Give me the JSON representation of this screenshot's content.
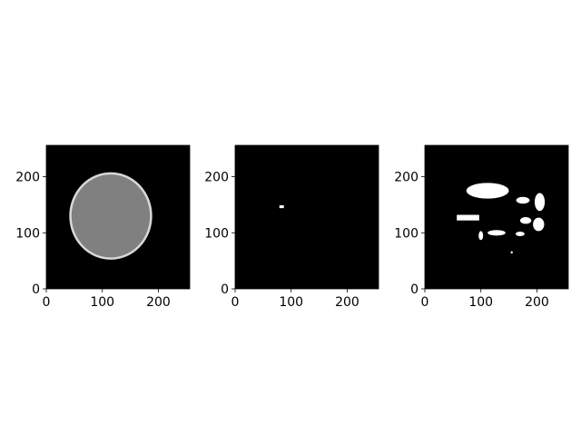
{
  "chart_data": [
    {
      "type": "heatmap",
      "content": "ct-slice-head",
      "colormap": "gray",
      "image_size": [
        256,
        256
      ],
      "xlim": [
        0,
        256
      ],
      "ylim": [
        0,
        256
      ],
      "xticks": [
        0,
        100,
        200
      ],
      "yticks": [
        0,
        100,
        200
      ],
      "xtick_labels": [
        "0",
        "100",
        "200"
      ],
      "ytick_labels": [
        "0",
        "100",
        "200"
      ],
      "regions": [
        {
          "label": "head",
          "shape": "ellipse",
          "center": [
            115,
            130
          ],
          "radius": [
            72,
            76
          ],
          "intensity": 0.5
        },
        {
          "label": "skull-rim",
          "shape": "ring",
          "center": [
            115,
            130
          ],
          "radius": [
            72,
            76
          ],
          "intensity": 0.85
        }
      ]
    },
    {
      "type": "heatmap",
      "content": "binary-mask",
      "colormap": "gray",
      "image_size": [
        256,
        256
      ],
      "xlim": [
        0,
        256
      ],
      "ylim": [
        0,
        256
      ],
      "xticks": [
        0,
        100,
        200
      ],
      "yticks": [
        0,
        100,
        200
      ],
      "xtick_labels": [
        "0",
        "100",
        "200"
      ],
      "ytick_labels": [
        "0",
        "100",
        "200"
      ],
      "regions": [
        {
          "label": "spot",
          "shape": "rect",
          "x": [
            79,
            87
          ],
          "y": [
            144,
            149
          ],
          "intensity": 1.0
        }
      ]
    },
    {
      "type": "heatmap",
      "content": "binary-mask",
      "colormap": "gray",
      "image_size": [
        256,
        256
      ],
      "xlim": [
        0,
        256
      ],
      "ylim": [
        0,
        256
      ],
      "xticks": [
        0,
        100,
        200
      ],
      "yticks": [
        0,
        100,
        200
      ],
      "xtick_labels": [
        "0",
        "100",
        "200"
      ],
      "ytick_labels": [
        "0",
        "100",
        "200"
      ],
      "regions": [
        {
          "label": "blob-upper",
          "shape": "ellipse",
          "center": [
            112,
            175
          ],
          "radius": [
            38,
            14
          ],
          "intensity": 1.0
        },
        {
          "label": "blob-left-bar",
          "shape": "rect",
          "x": [
            57,
            97
          ],
          "y": [
            122,
            132
          ],
          "intensity": 1.0
        },
        {
          "label": "blob-right-tall",
          "shape": "ellipse",
          "center": [
            205,
            155
          ],
          "radius": [
            9,
            16
          ],
          "intensity": 1.0
        },
        {
          "label": "blob-right-low",
          "shape": "ellipse",
          "center": [
            203,
            115
          ],
          "radius": [
            10,
            12
          ],
          "intensity": 1.0
        },
        {
          "label": "blob-mid-right",
          "shape": "ellipse",
          "center": [
            175,
            158
          ],
          "radius": [
            12,
            6
          ],
          "intensity": 1.0
        },
        {
          "label": "blob-mid",
          "shape": "ellipse",
          "center": [
            180,
            122
          ],
          "radius": [
            10,
            6
          ],
          "intensity": 1.0
        },
        {
          "label": "blob-lower-mid",
          "shape": "ellipse",
          "center": [
            128,
            100
          ],
          "radius": [
            16,
            5
          ],
          "intensity": 1.0
        },
        {
          "label": "blob-lower-small",
          "shape": "ellipse",
          "center": [
            100,
            95
          ],
          "radius": [
            4,
            8
          ],
          "intensity": 1.0
        },
        {
          "label": "blob-lower-right",
          "shape": "ellipse",
          "center": [
            170,
            98
          ],
          "radius": [
            8,
            4
          ],
          "intensity": 1.0
        },
        {
          "label": "dot",
          "shape": "ellipse",
          "center": [
            155,
            65
          ],
          "radius": [
            2,
            2
          ],
          "intensity": 1.0
        }
      ]
    }
  ]
}
